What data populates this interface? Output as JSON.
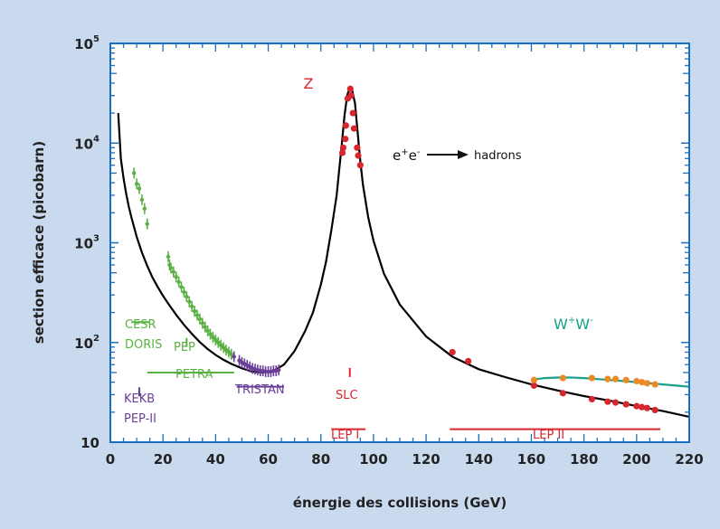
{
  "chart_data": {
    "type": "scatter",
    "xlabel": "énergie des collisions (GeV)",
    "ylabel": "section efficace (picobarn)",
    "xlim": [
      0,
      220
    ],
    "ylim": [
      10,
      100000
    ],
    "yscale": "log",
    "grid": false,
    "x_ticks": [
      "0",
      "20",
      "40",
      "60",
      "80",
      "100",
      "120",
      "140",
      "160",
      "180",
      "200",
      "220"
    ],
    "y_ticks": [
      {
        "base": "10",
        "exp": "5"
      },
      {
        "base": "10",
        "exp": "4"
      },
      {
        "base": "10",
        "exp": "3"
      },
      {
        "base": "10",
        "exp": "2"
      },
      {
        "base": "10",
        "exp": ""
      }
    ],
    "colors": {
      "background": "#c9d9ee",
      "frame": "#1a6ec0",
      "curve": "#000000",
      "ww_curve": "#19a08c",
      "red": "#d7262e",
      "green": "#5bb043",
      "purple": "#6a3e96",
      "orange": "#ee8a26"
    },
    "series": [
      {
        "color": "#000000",
        "kind": "curve",
        "x": [
          3,
          4,
          5,
          6,
          7,
          8,
          10,
          12,
          14,
          16,
          18,
          20,
          22,
          25,
          28,
          31,
          34,
          37,
          40,
          43,
          46,
          50,
          54,
          58,
          62,
          66,
          70,
          74,
          77,
          80,
          82,
          84,
          86,
          87,
          88,
          89,
          90,
          91,
          91.2,
          91.5,
          92,
          93,
          94,
          95,
          96,
          98,
          100,
          104,
          110,
          120,
          130,
          140,
          150,
          160,
          170,
          180,
          190,
          200,
          210,
          220
        ],
        "y": [
          20000,
          7000,
          4500,
          3100,
          2300,
          1800,
          1150,
          800,
          590,
          450,
          360,
          295,
          245,
          190,
          150,
          122,
          101,
          86,
          75,
          67,
          61,
          55,
          51,
          50,
          52,
          60,
          82,
          130,
          200,
          380,
          650,
          1350,
          3000,
          5500,
          10000,
          19000,
          30000,
          36000,
          36500,
          36000,
          33000,
          25000,
          12500,
          6500,
          3800,
          1800,
          1050,
          490,
          240,
          115,
          72,
          54,
          45,
          38,
          33,
          29,
          26,
          23,
          20.5,
          18
        ]
      },
      {
        "color": "#19a08c",
        "kind": "curve",
        "x": [
          160,
          162,
          165,
          170,
          175,
          180,
          185,
          190,
          195,
          200,
          205,
          210,
          215,
          220
        ],
        "y": [
          41,
          43,
          44,
          44.5,
          44.5,
          44,
          43,
          42,
          41,
          40,
          39,
          38,
          37,
          36
        ]
      },
      {
        "color": "#5bb043",
        "kind": "errorbars",
        "x": [
          9,
          10,
          11,
          12,
          13,
          14,
          22,
          22.5,
          23,
          24,
          25,
          26,
          27,
          28,
          29,
          30,
          31,
          32,
          33,
          34,
          35,
          36,
          37,
          38,
          39,
          40,
          41,
          42,
          43,
          44,
          45,
          46
        ],
        "y": [
          5000,
          3900,
          3500,
          2700,
          2200,
          1550,
          725,
          600,
          560,
          510,
          455,
          405,
          360,
          320,
          288,
          256,
          230,
          206,
          188,
          172,
          156,
          143,
          131,
          121,
          113,
          106,
          100,
          94,
          89,
          84,
          80,
          76
        ]
      },
      {
        "color": "#6a3e96",
        "kind": "errorbars",
        "x": [
          47,
          49,
          50,
          51,
          52,
          53,
          54,
          55,
          56,
          57,
          58,
          59,
          60,
          61,
          62,
          63,
          64
        ],
        "y": [
          72,
          66,
          63,
          61,
          59,
          57,
          55,
          54,
          53,
          52,
          52,
          51,
          51,
          51,
          52,
          52,
          53
        ]
      },
      {
        "color": "#d7262e",
        "kind": "points",
        "x": [
          88.2,
          88.5,
          89.3,
          89.5,
          90.2,
          91.2,
          91.5,
          92.2,
          92.6,
          93.8,
          94.2,
          95,
          130,
          136,
          161,
          172,
          183,
          189,
          192,
          196,
          200,
          202,
          204,
          207
        ],
        "y": [
          8000,
          9000,
          11000,
          15000,
          28000,
          35000,
          30000,
          20000,
          14000,
          9000,
          7500,
          6000,
          80,
          65,
          37,
          31,
          27,
          25.5,
          25,
          24,
          23,
          22.5,
          22,
          21
        ]
      },
      {
        "color": "#ee8a26",
        "kind": "points",
        "x": [
          161,
          172,
          183,
          189,
          192,
          196,
          200,
          202,
          204,
          207
        ],
        "y": [
          42,
          44,
          44,
          43,
          43,
          42,
          41,
          40,
          39,
          38
        ]
      }
    ],
    "annotations": {
      "z": "Z",
      "process": {
        "e": "e",
        "plus": "+",
        "minus": "-",
        "hadrons": "hadrons"
      },
      "ww": {
        "w1": "W",
        "plus": "+",
        "w2": "W",
        "minus": "-"
      },
      "experiments": {
        "cesr": "CESR",
        "doris": "DORIS",
        "pep": "PEP",
        "petra": "PETRA",
        "tristan": "TRISTAN",
        "kekb": "KEKB",
        "pep2": "PEP-II",
        "slc": "SLC",
        "lep1": "LEP I",
        "lep2": "LEP II"
      },
      "ranges": [
        {
          "color": "#5bb043",
          "from": 8,
          "to": 15,
          "y": 160
        },
        {
          "color": "#5bb043",
          "from": 29,
          "to": 29,
          "y": 100
        },
        {
          "color": "#5bb043",
          "from": 14,
          "to": 47,
          "y": 50
        },
        {
          "color": "#6a3e96",
          "from": 48,
          "to": 66,
          "y": 36
        },
        {
          "color": "#6a3e96",
          "from": 11,
          "to": 11,
          "y": 32
        },
        {
          "color": "#d7262e",
          "from": 91,
          "to": 91,
          "y": 50
        },
        {
          "color": "#d7262e",
          "from": 84,
          "to": 97,
          "y": 13.5
        },
        {
          "color": "#d7262e",
          "from": 129,
          "to": 209,
          "y": 13.5
        }
      ]
    }
  }
}
